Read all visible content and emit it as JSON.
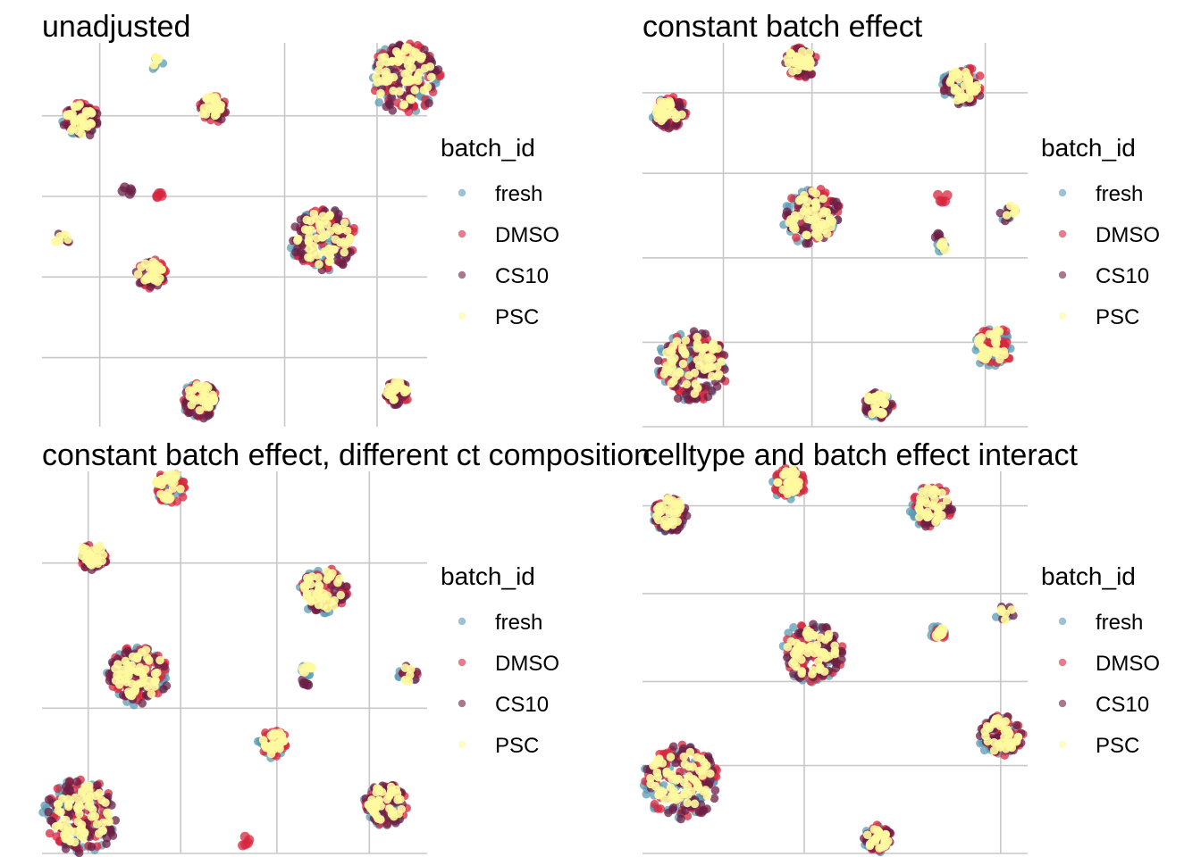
{
  "colors": {
    "fresh": "#5b9bb3",
    "DMSO": "#d7263d",
    "CS10": "#6b1f45",
    "PSC": "#fffa9e"
  },
  "legend": {
    "title": "batch_id",
    "items": [
      "fresh",
      "DMSO",
      "CS10",
      "PSC"
    ]
  },
  "chart_data": [
    {
      "type": "scatter",
      "title": "unadjusted",
      "grid": true,
      "legend_position": "right",
      "xlim": [
        0,
        100
      ],
      "ylim": [
        0,
        100
      ],
      "xgrid": [
        15,
        63,
        87
      ],
      "ygrid": [
        81,
        60,
        39,
        18
      ],
      "clusters": [
        {
          "x": 30,
          "y": 95,
          "r": 2,
          "stack": [
            "fresh",
            "PSC"
          ]
        },
        {
          "x": 94,
          "y": 91,
          "r": 10,
          "stack": [
            "fresh",
            "DMSO",
            "CS10",
            "PSC"
          ]
        },
        {
          "x": 10,
          "y": 80,
          "r": 5,
          "stack": [
            "fresh",
            "DMSO",
            "CS10",
            "PSC"
          ]
        },
        {
          "x": 44,
          "y": 83,
          "r": 4,
          "stack": [
            "DMSO",
            "CS10",
            "PSC"
          ]
        },
        {
          "x": 22,
          "y": 61,
          "r": 1.6,
          "stack": [
            "CS10"
          ]
        },
        {
          "x": 31,
          "y": 60,
          "r": 1.6,
          "stack": [
            "DMSO"
          ]
        },
        {
          "x": 5,
          "y": 49,
          "r": 2.5,
          "stack": [
            "CS10",
            "PSC"
          ]
        },
        {
          "x": 73,
          "y": 49,
          "r": 9,
          "stack": [
            "fresh",
            "DMSO",
            "CS10",
            "PSC"
          ]
        },
        {
          "x": 28,
          "y": 40,
          "r": 4.2,
          "stack": [
            "DMSO",
            "CS10",
            "PSC"
          ]
        },
        {
          "x": 41,
          "y": 7,
          "r": 5,
          "stack": [
            "fresh",
            "DMSO",
            "CS10",
            "PSC"
          ]
        },
        {
          "x": 92,
          "y": 9,
          "r": 3.5,
          "stack": [
            "DMSO",
            "CS10",
            "PSC"
          ]
        }
      ]
    },
    {
      "type": "scatter",
      "title": "constant batch effect",
      "grid": true,
      "legend_position": "right",
      "xlim": [
        0,
        100
      ],
      "ylim": [
        0,
        100
      ],
      "xgrid": [
        21,
        44,
        89
      ],
      "ygrid": [
        87,
        66,
        44,
        22,
        0
      ],
      "clusters": [
        {
          "x": 41,
          "y": 95,
          "r": 4.5,
          "stack": [
            "DMSO",
            "CS10",
            "PSC"
          ]
        },
        {
          "x": 83,
          "y": 89,
          "r": 5.5,
          "stack": [
            "fresh",
            "DMSO",
            "CS10",
            "PSC"
          ]
        },
        {
          "x": 7,
          "y": 82,
          "r": 4.5,
          "stack": [
            "fresh",
            "DMSO",
            "CS10",
            "PSC"
          ]
        },
        {
          "x": 44,
          "y": 55,
          "r": 8,
          "stack": [
            "fresh",
            "DMSO",
            "CS10",
            "PSC"
          ]
        },
        {
          "x": 78,
          "y": 60,
          "r": 1.6,
          "stack": [
            "DMSO"
          ]
        },
        {
          "x": 95,
          "y": 56,
          "r": 2.5,
          "stack": [
            "fresh",
            "CS10",
            "PSC"
          ]
        },
        {
          "x": 77,
          "y": 49,
          "r": 1.6,
          "stack": [
            "CS10"
          ]
        },
        {
          "x": 78,
          "y": 47,
          "r": 1.6,
          "stack": [
            "fresh",
            "PSC"
          ]
        },
        {
          "x": 13,
          "y": 16,
          "r": 10,
          "stack": [
            "fresh",
            "DMSO",
            "CS10",
            "PSC"
          ]
        },
        {
          "x": 91,
          "y": 21,
          "r": 5.5,
          "stack": [
            "fresh",
            "DMSO",
            "PSC"
          ]
        },
        {
          "x": 61,
          "y": 6,
          "r": 4,
          "stack": [
            "fresh",
            "DMSO",
            "CS10",
            "PSC"
          ]
        }
      ]
    },
    {
      "type": "scatter",
      "title": "constant batch effect, different ct composition",
      "grid": true,
      "legend_position": "right",
      "xlim": [
        0,
        100
      ],
      "ylim": [
        0,
        100
      ],
      "xgrid": [
        12,
        36,
        61,
        85
      ],
      "ygrid": [
        76,
        38,
        0
      ],
      "clusters": [
        {
          "x": 33,
          "y": 96,
          "r": 4.5,
          "stack": [
            "fresh",
            "DMSO",
            "PSC"
          ]
        },
        {
          "x": 13,
          "y": 78,
          "r": 4,
          "stack": [
            "DMSO",
            "CS10",
            "PSC"
          ]
        },
        {
          "x": 73,
          "y": 69,
          "r": 6.5,
          "stack": [
            "fresh",
            "DMSO",
            "CS10",
            "PSC"
          ]
        },
        {
          "x": 25,
          "y": 47,
          "r": 8.5,
          "stack": [
            "fresh",
            "DMSO",
            "CS10",
            "PSC"
          ]
        },
        {
          "x": 69,
          "y": 45,
          "r": 1.6,
          "stack": [
            "CS10"
          ]
        },
        {
          "x": 69,
          "y": 48,
          "r": 1.6,
          "stack": [
            "fresh",
            "PSC"
          ]
        },
        {
          "x": 95,
          "y": 47,
          "r": 2.7,
          "stack": [
            "fresh",
            "DMSO",
            "CS10",
            "PSC"
          ]
        },
        {
          "x": 60,
          "y": 29,
          "r": 4,
          "stack": [
            "fresh",
            "DMSO",
            "PSC"
          ]
        },
        {
          "x": 89,
          "y": 13,
          "r": 6,
          "stack": [
            "fresh",
            "DMSO",
            "CS10",
            "PSC"
          ]
        },
        {
          "x": 10,
          "y": 10,
          "r": 10.5,
          "stack": [
            "fresh",
            "DMSO",
            "CS10",
            "PSC"
          ]
        },
        {
          "x": 53,
          "y": 3,
          "r": 1.6,
          "stack": [
            "DMSO"
          ]
        }
      ]
    },
    {
      "type": "scatter",
      "title": "celltype and batch effect interact",
      "grid": true,
      "legend_position": "right",
      "xlim": [
        0,
        100
      ],
      "ylim": [
        0,
        100
      ],
      "xgrid": [
        42,
        93
      ],
      "ygrid": [
        91,
        68,
        45,
        23,
        0
      ],
      "clusters": [
        {
          "x": 38,
          "y": 97,
          "r": 4.5,
          "stack": [
            "fresh",
            "DMSO",
            "PSC"
          ]
        },
        {
          "x": 75,
          "y": 91,
          "r": 5.8,
          "stack": [
            "fresh",
            "DMSO",
            "CS10",
            "PSC"
          ]
        },
        {
          "x": 7,
          "y": 89,
          "r": 5,
          "stack": [
            "fresh",
            "DMSO",
            "CS10",
            "PSC"
          ]
        },
        {
          "x": 94,
          "y": 63,
          "r": 2.6,
          "stack": [
            "fresh",
            "CS10",
            "PSC"
          ]
        },
        {
          "x": 77,
          "y": 58,
          "r": 1.8,
          "stack": [
            "fresh",
            "DMSO",
            "PSC"
          ]
        },
        {
          "x": 44,
          "y": 53,
          "r": 8.5,
          "stack": [
            "fresh",
            "DMSO",
            "CS10",
            "PSC"
          ]
        },
        {
          "x": 93,
          "y": 31,
          "r": 6,
          "stack": [
            "fresh",
            "DMSO",
            "CS10",
            "PSC"
          ]
        },
        {
          "x": 10,
          "y": 19,
          "r": 10.5,
          "stack": [
            "fresh",
            "DMSO",
            "CS10",
            "PSC"
          ]
        },
        {
          "x": 61,
          "y": 4,
          "r": 4,
          "stack": [
            "fresh",
            "DMSO",
            "CS10",
            "PSC"
          ]
        }
      ]
    }
  ]
}
